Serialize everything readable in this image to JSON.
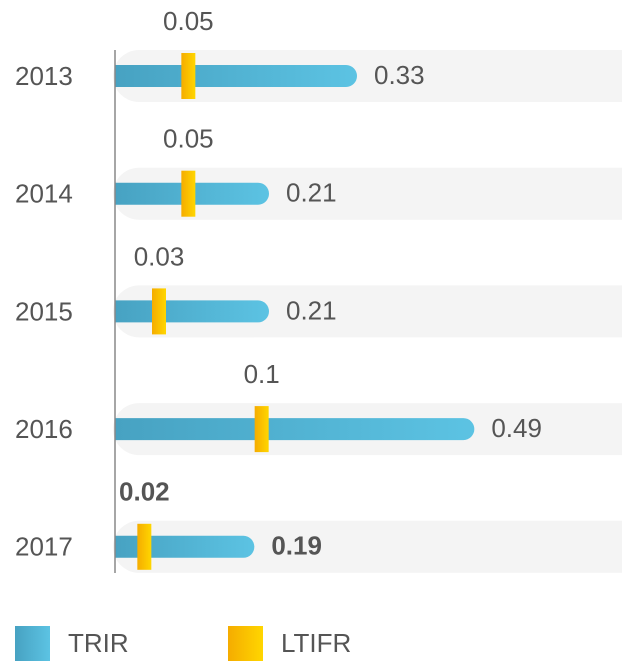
{
  "chart_data": {
    "type": "bar",
    "categories": [
      "2013",
      "2014",
      "2015",
      "2016",
      "2017"
    ],
    "series": [
      {
        "name": "TRIR",
        "color": "#4fb3d6",
        "values": [
          0.33,
          0.21,
          0.21,
          0.49,
          0.19
        ]
      },
      {
        "name": "LTIFR",
        "color": "#fcc200",
        "values": [
          0.05,
          0.05,
          0.03,
          0.1,
          0.02
        ],
        "axis": "x2"
      }
    ],
    "xlim": [
      0,
      0.6
    ],
    "x2lim": [
      0,
      0.3
    ],
    "label_bold": [
      false,
      false,
      false,
      false,
      true
    ]
  }
}
